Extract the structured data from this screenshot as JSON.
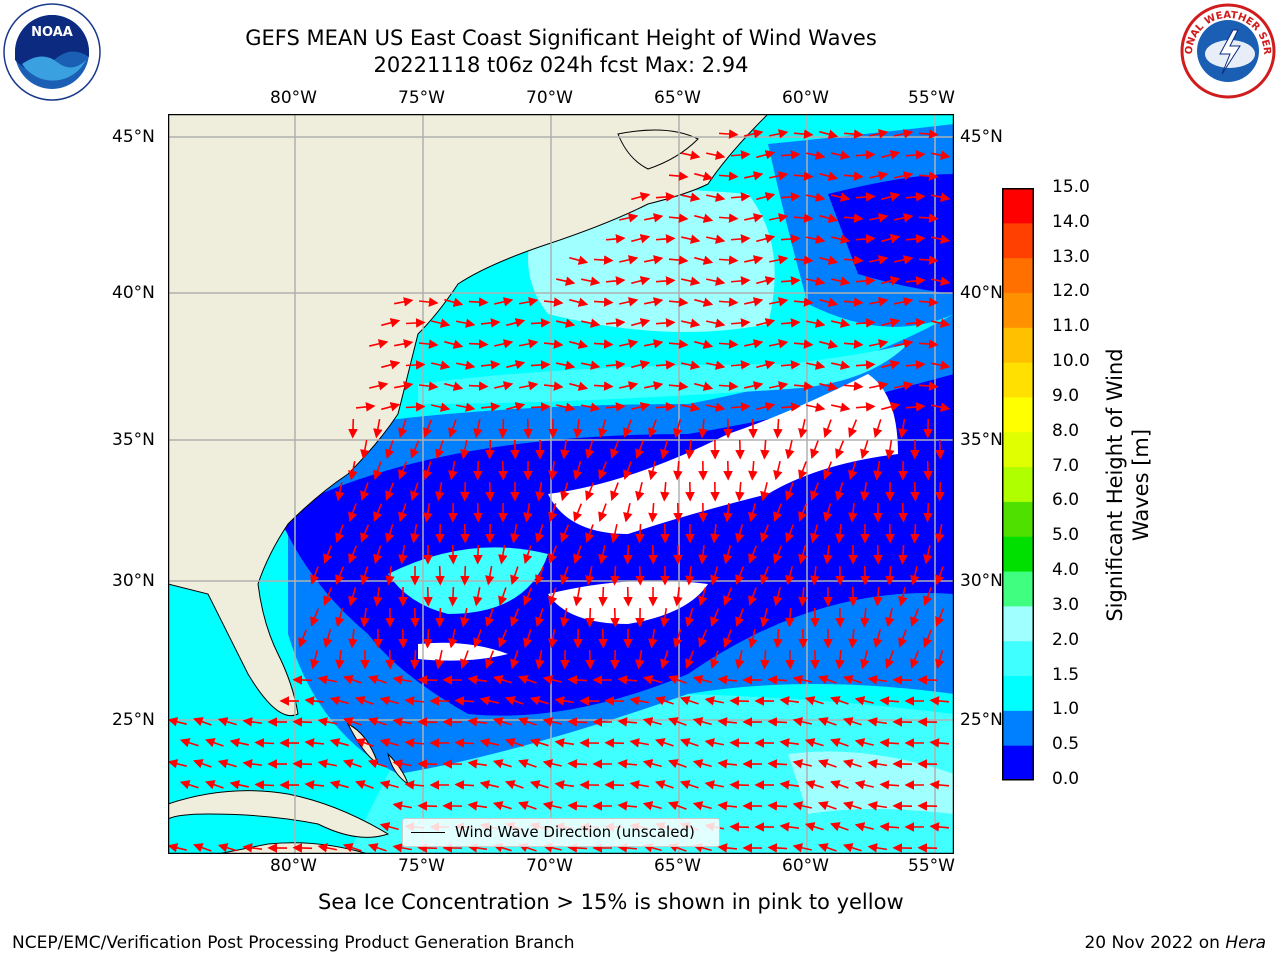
{
  "header": {
    "title_line1": "GEFS MEAN US East Coast Significant Height of Wind Waves",
    "title_line2": "20221118 t06z 024h fcst   Max: 2.94"
  },
  "map": {
    "region": "US East Coast / Western North Atlantic",
    "extent": {
      "lon_min": -85,
      "lon_max": -54.2,
      "lat_min": 20.5,
      "lat_max": 46
    },
    "lat_ticks": [
      "45°N",
      "40°N",
      "35°N",
      "30°N",
      "25°N"
    ],
    "lon_ticks": [
      "80°W",
      "75°W",
      "70°W",
      "65°W",
      "60°W",
      "55°W"
    ],
    "grid": true,
    "land_color": "#efeedd",
    "gridline_color": "#b0b0b0",
    "arrow_color": "#ff0000",
    "legend_label": "Wind Wave Direction (unscaled)"
  },
  "colorbar": {
    "label": "Significant Height of Wind Waves [m]",
    "ticks": [
      "0.0",
      "0.5",
      "1.0",
      "1.5",
      "2.0",
      "3.0",
      "4.0",
      "5.0",
      "6.0",
      "7.0",
      "8.0",
      "9.0",
      "10.0",
      "11.0",
      "12.0",
      "13.0",
      "14.0",
      "15.0"
    ],
    "colors": [
      "#0000ff",
      "#0080ff",
      "#00ffff",
      "#40ffff",
      "#a0ffff",
      "#40ff80",
      "#00e000",
      "#50e000",
      "#b0ff00",
      "#e0ff00",
      "#ffff00",
      "#ffe000",
      "#ffc000",
      "#ff9000",
      "#ff7000",
      "#ff4000",
      "#ff0000"
    ]
  },
  "footer": {
    "sea_ice_note": "Sea Ice Concentration > 15% is shown in pink to yellow",
    "credit": "NCEP/EMC/Verification Post Processing Product Generation Branch",
    "date": "20 Nov 2022 on ",
    "machine": "Hera"
  },
  "logos": {
    "noaa_text": "NOAA",
    "nws_text": "NATIONAL WEATHER SERVICE"
  }
}
